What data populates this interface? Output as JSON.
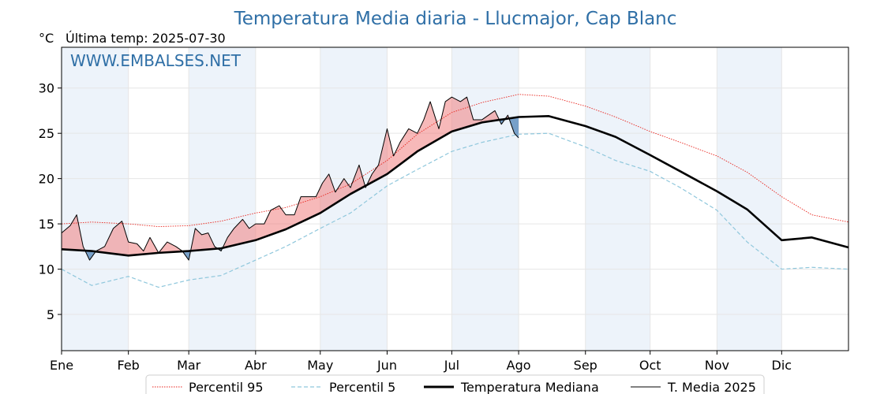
{
  "chart_data": {
    "type": "line",
    "title": "Temperatura Media diaria - Llucmajor, Cap Blanc",
    "unit_label": "°C",
    "last_temp_label": "Última temp: 2025-07-30",
    "watermark": "WWW.EMBALSES.NET",
    "x_tick_labels": [
      "Ene",
      "Feb",
      "Mar",
      "Abr",
      "May",
      "Jun",
      "Jul",
      "Ago",
      "Sep",
      "Oct",
      "Nov",
      "Dic"
    ],
    "x_domain": [
      1,
      366
    ],
    "y_ticks": [
      5,
      10,
      15,
      20,
      25,
      30
    ],
    "ylim": [
      1,
      34.5
    ],
    "grid": true,
    "legend_position": "bottom",
    "colors": {
      "p95": "#e8231c",
      "p5": "#8fc7dc",
      "median": "#000000",
      "current": "#000000",
      "above": "#f08080",
      "below": "#4f84b8",
      "title": "#2f6fa6",
      "month_band": "#edf3fa"
    },
    "series": [
      {
        "name": "Percentil 95",
        "style": "dotted",
        "points": [
          [
            1,
            15.0
          ],
          [
            15,
            15.2
          ],
          [
            32,
            15.0
          ],
          [
            46,
            14.7
          ],
          [
            60,
            14.8
          ],
          [
            75,
            15.3
          ],
          [
            91,
            16.2
          ],
          [
            105,
            16.8
          ],
          [
            121,
            18.0
          ],
          [
            135,
            19.4
          ],
          [
            152,
            22.0
          ],
          [
            166,
            24.9
          ],
          [
            182,
            27.3
          ],
          [
            196,
            28.4
          ],
          [
            213,
            29.3
          ],
          [
            227,
            29.1
          ],
          [
            244,
            28.0
          ],
          [
            258,
            26.8
          ],
          [
            274,
            25.2
          ],
          [
            288,
            24.0
          ],
          [
            305,
            22.5
          ],
          [
            319,
            20.7
          ],
          [
            335,
            18.0
          ],
          [
            349,
            16.0
          ],
          [
            366,
            15.2
          ]
        ]
      },
      {
        "name": "Percentil 5",
        "style": "dashed",
        "points": [
          [
            1,
            10.0
          ],
          [
            15,
            8.2
          ],
          [
            32,
            9.2
          ],
          [
            46,
            8.0
          ],
          [
            60,
            8.8
          ],
          [
            75,
            9.3
          ],
          [
            91,
            11.0
          ],
          [
            105,
            12.5
          ],
          [
            121,
            14.5
          ],
          [
            135,
            16.2
          ],
          [
            152,
            19.2
          ],
          [
            166,
            21.0
          ],
          [
            182,
            23.0
          ],
          [
            196,
            24.0
          ],
          [
            213,
            24.9
          ],
          [
            227,
            25.0
          ],
          [
            244,
            23.5
          ],
          [
            258,
            22.0
          ],
          [
            274,
            20.8
          ],
          [
            288,
            19.0
          ],
          [
            305,
            16.5
          ],
          [
            319,
            13.0
          ],
          [
            335,
            10.0
          ],
          [
            349,
            10.2
          ],
          [
            366,
            10.0
          ]
        ]
      },
      {
        "name": "Temperatura Mediana",
        "style": "thick",
        "points": [
          [
            1,
            12.2
          ],
          [
            15,
            12.0
          ],
          [
            32,
            11.5
          ],
          [
            46,
            11.8
          ],
          [
            60,
            12.0
          ],
          [
            75,
            12.3
          ],
          [
            91,
            13.2
          ],
          [
            105,
            14.4
          ],
          [
            121,
            16.2
          ],
          [
            135,
            18.3
          ],
          [
            152,
            20.5
          ],
          [
            166,
            23.0
          ],
          [
            182,
            25.2
          ],
          [
            196,
            26.2
          ],
          [
            213,
            26.8
          ],
          [
            227,
            26.9
          ],
          [
            244,
            25.8
          ],
          [
            258,
            24.6
          ],
          [
            274,
            22.6
          ],
          [
            288,
            20.8
          ],
          [
            305,
            18.6
          ],
          [
            319,
            16.6
          ],
          [
            335,
            13.2
          ],
          [
            349,
            13.5
          ],
          [
            366,
            12.4
          ]
        ]
      },
      {
        "name": "T. Media 2025",
        "style": "thin",
        "points": [
          [
            1,
            14.0
          ],
          [
            5,
            14.8
          ],
          [
            8,
            16.0
          ],
          [
            11,
            12.5
          ],
          [
            14,
            11.0
          ],
          [
            17,
            12.0
          ],
          [
            21,
            12.5
          ],
          [
            25,
            14.5
          ],
          [
            29,
            15.3
          ],
          [
            32,
            13.0
          ],
          [
            36,
            12.8
          ],
          [
            39,
            12.0
          ],
          [
            42,
            13.5
          ],
          [
            46,
            11.8
          ],
          [
            50,
            13.0
          ],
          [
            54,
            12.5
          ],
          [
            57,
            12.0
          ],
          [
            60,
            11.0
          ],
          [
            63,
            14.5
          ],
          [
            66,
            13.8
          ],
          [
            69,
            14.0
          ],
          [
            72,
            12.5
          ],
          [
            75,
            12.0
          ],
          [
            78,
            13.5
          ],
          [
            81,
            14.5
          ],
          [
            85,
            15.5
          ],
          [
            88,
            14.5
          ],
          [
            91,
            15.0
          ],
          [
            95,
            15.0
          ],
          [
            98,
            16.5
          ],
          [
            102,
            17.0
          ],
          [
            105,
            16.0
          ],
          [
            109,
            16.0
          ],
          [
            112,
            18.0
          ],
          [
            116,
            18.0
          ],
          [
            119,
            18.0
          ],
          [
            122,
            19.5
          ],
          [
            125,
            20.5
          ],
          [
            128,
            18.5
          ],
          [
            132,
            20.0
          ],
          [
            135,
            19.0
          ],
          [
            139,
            21.5
          ],
          [
            142,
            19.0
          ],
          [
            145,
            20.5
          ],
          [
            148,
            21.5
          ],
          [
            152,
            25.5
          ],
          [
            155,
            22.5
          ],
          [
            158,
            24.0
          ],
          [
            162,
            25.5
          ],
          [
            166,
            25.0
          ],
          [
            169,
            26.5
          ],
          [
            172,
            28.5
          ],
          [
            176,
            25.5
          ],
          [
            179,
            28.5
          ],
          [
            182,
            29.0
          ],
          [
            186,
            28.5
          ],
          [
            189,
            29.0
          ],
          [
            192,
            26.5
          ],
          [
            196,
            26.5
          ],
          [
            199,
            27.0
          ],
          [
            202,
            27.5
          ],
          [
            205,
            26.0
          ],
          [
            208,
            27.0
          ],
          [
            211,
            25.0
          ],
          [
            213,
            24.5
          ]
        ]
      }
    ]
  },
  "legend": {
    "p95_label": "Percentil 95",
    "p5_label": "Percentil 5",
    "median_label": "Temperatura Mediana",
    "current_label": "T. Media 2025"
  }
}
